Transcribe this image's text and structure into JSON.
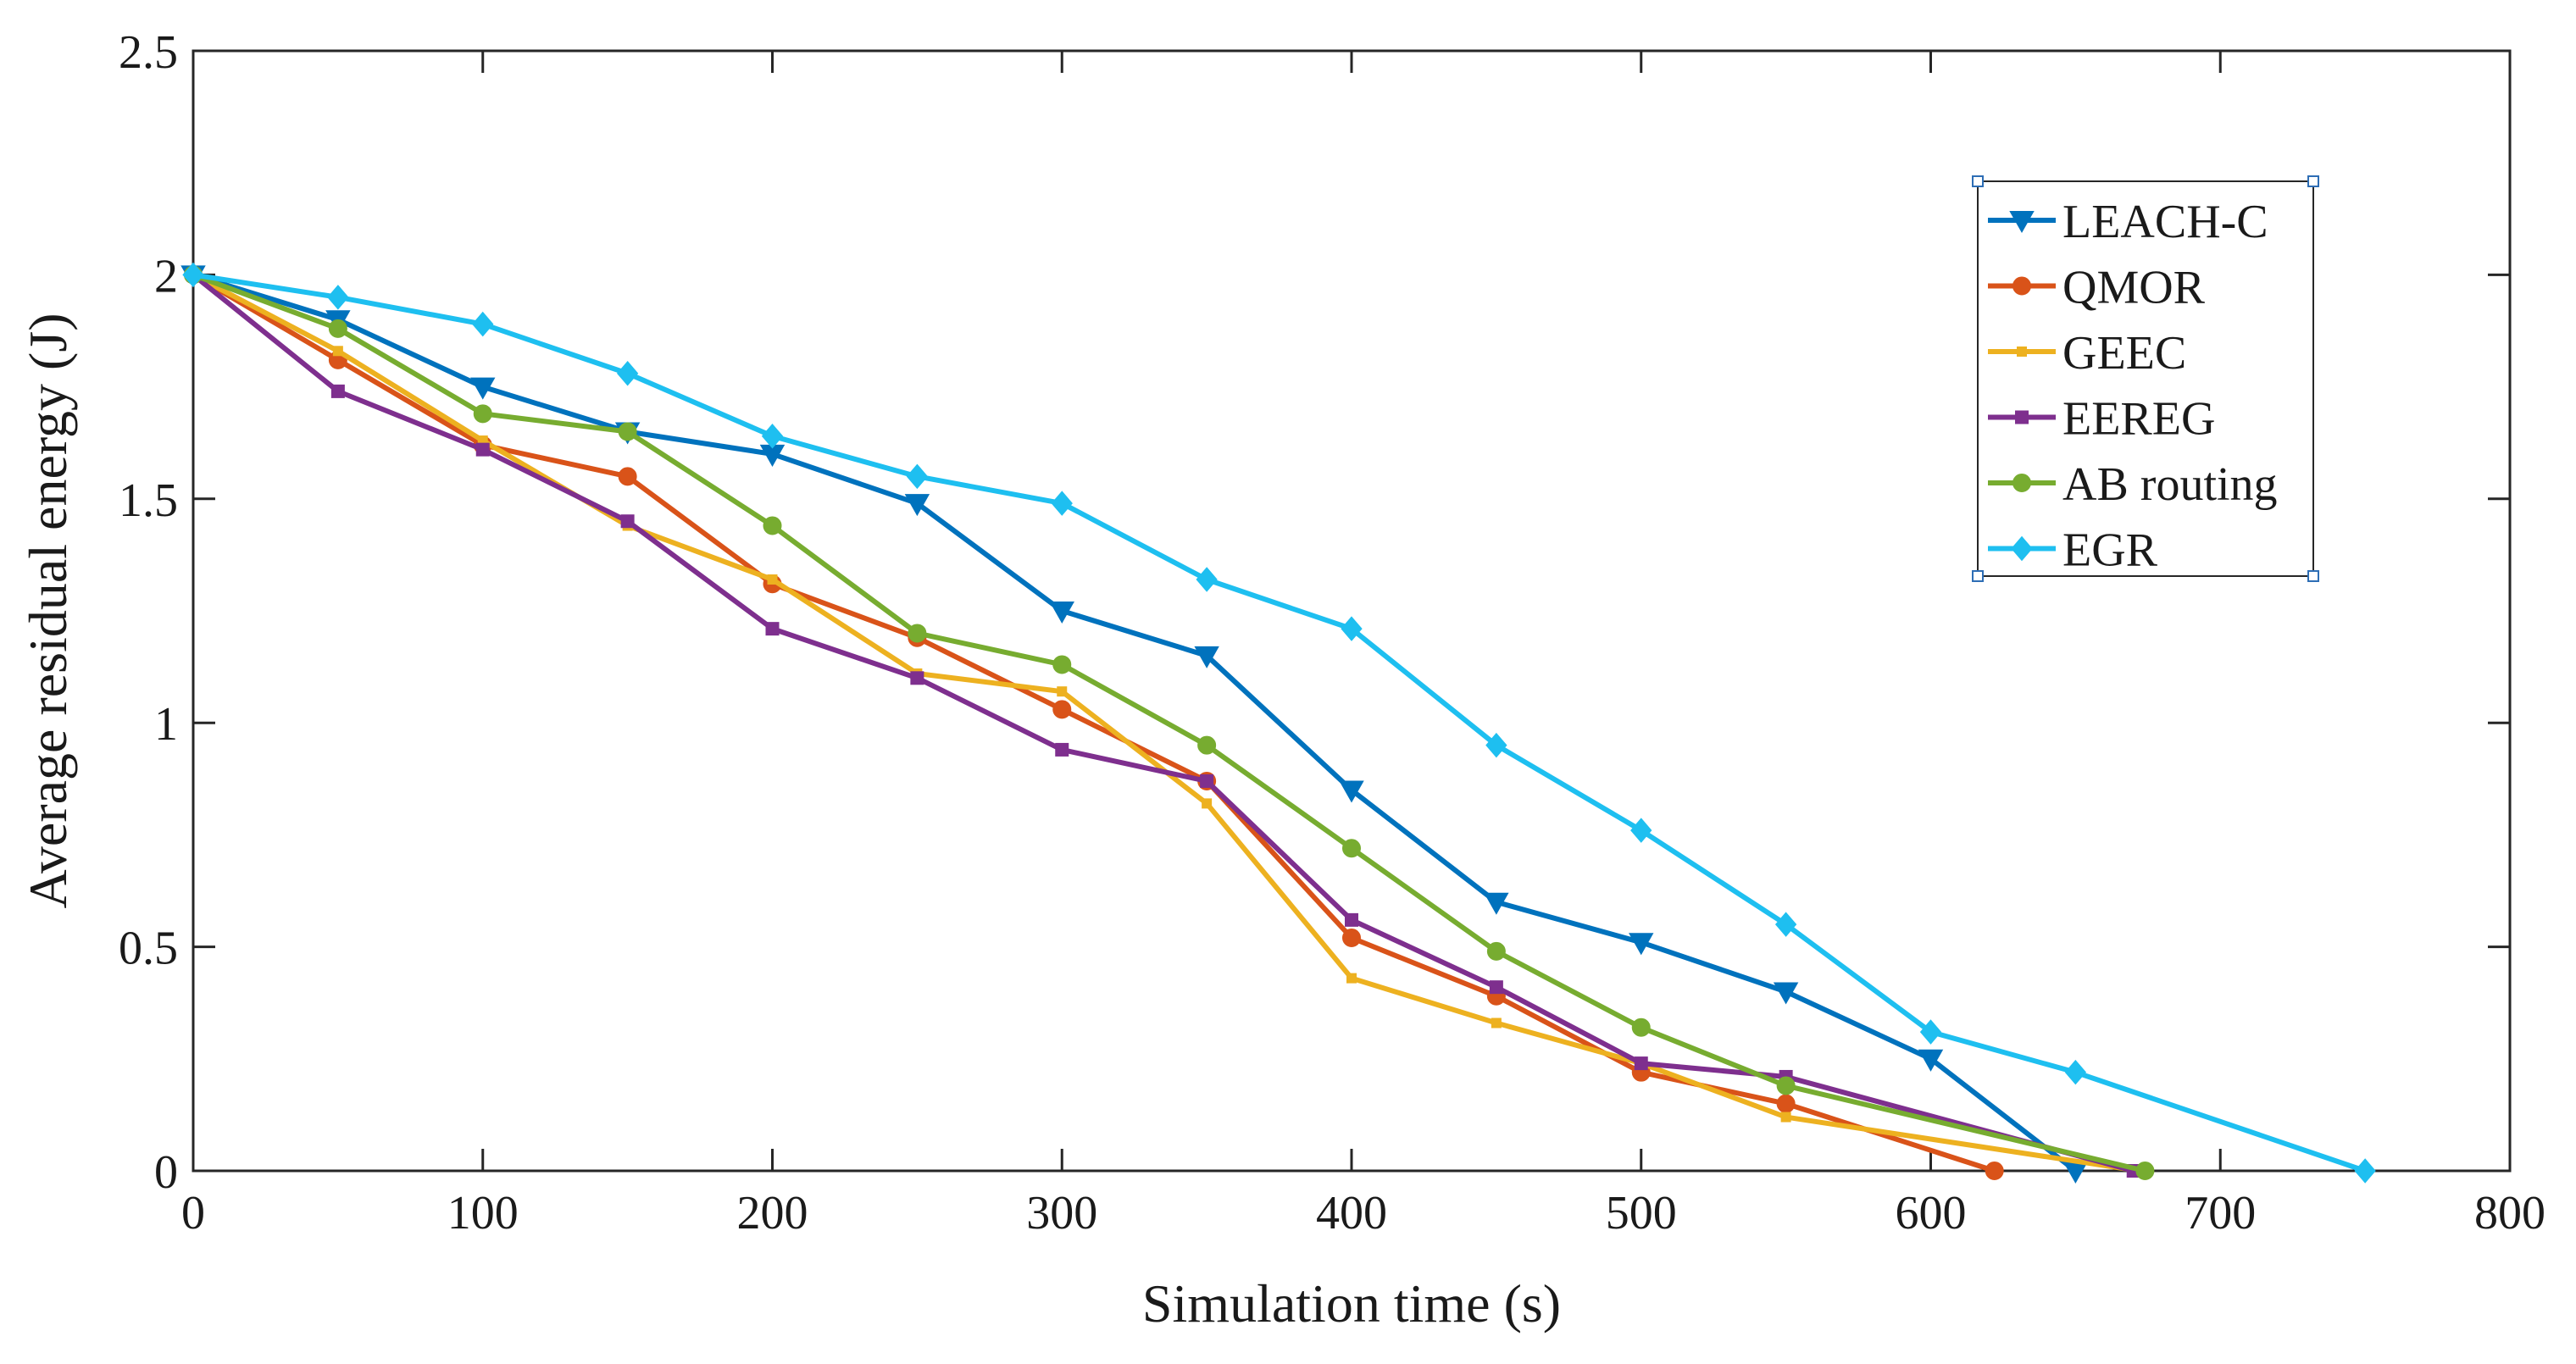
{
  "chart_data": {
    "type": "line",
    "xlabel": "Simulation time (s)",
    "ylabel": "Average residual energy (J)",
    "xlim": [
      0,
      800
    ],
    "ylim": [
      0,
      2.5
    ],
    "xticks": [
      0,
      100,
      200,
      300,
      400,
      500,
      600,
      700,
      800
    ],
    "yticks": [
      0,
      0.5,
      1,
      1.5,
      2,
      2.5
    ],
    "xtick_labels": [
      "0",
      "100",
      "200",
      "300",
      "400",
      "500",
      "600",
      "700",
      "800"
    ],
    "ytick_labels": [
      "0",
      "0.5",
      "1",
      "1.5",
      "2",
      "2.5"
    ],
    "grid": false,
    "legend_position": "top-right",
    "series": [
      {
        "name": "LEACH-C",
        "color": "#0072BD",
        "marker": "triangle-down",
        "x": [
          0,
          50,
          100,
          150,
          200,
          250,
          300,
          350,
          400,
          450,
          500,
          550,
          600,
          650
        ],
        "y": [
          2.0,
          1.9,
          1.75,
          1.65,
          1.6,
          1.49,
          1.25,
          1.15,
          0.85,
          0.6,
          0.51,
          0.4,
          0.25,
          0.0
        ]
      },
      {
        "name": "QMOR",
        "color": "#D95319",
        "marker": "circle",
        "x": [
          0,
          50,
          100,
          150,
          200,
          250,
          300,
          350,
          400,
          450,
          500,
          550,
          622
        ],
        "y": [
          2.0,
          1.81,
          1.62,
          1.55,
          1.31,
          1.19,
          1.03,
          0.87,
          0.52,
          0.39,
          0.22,
          0.15,
          0.0
        ]
      },
      {
        "name": "GEEC",
        "color": "#EDB120",
        "marker": "square-small",
        "x": [
          0,
          50,
          100,
          150,
          200,
          250,
          300,
          350,
          400,
          450,
          500,
          550,
          672
        ],
        "y": [
          2.0,
          1.83,
          1.63,
          1.44,
          1.32,
          1.11,
          1.07,
          0.82,
          0.43,
          0.33,
          0.24,
          0.12,
          0.0
        ]
      },
      {
        "name": "EEREG",
        "color": "#7E2F8E",
        "marker": "square",
        "x": [
          0,
          50,
          100,
          150,
          200,
          250,
          300,
          350,
          400,
          450,
          500,
          550,
          670
        ],
        "y": [
          2.0,
          1.74,
          1.61,
          1.45,
          1.21,
          1.1,
          0.94,
          0.87,
          0.56,
          0.41,
          0.24,
          0.21,
          0.0
        ]
      },
      {
        "name": "AB routing",
        "color": "#77AC30",
        "marker": "circle",
        "x": [
          0,
          50,
          100,
          150,
          200,
          250,
          300,
          350,
          400,
          450,
          500,
          550,
          674
        ],
        "y": [
          2.0,
          1.88,
          1.69,
          1.65,
          1.44,
          1.2,
          1.13,
          0.95,
          0.72,
          0.49,
          0.32,
          0.19,
          0.0
        ]
      },
      {
        "name": "EGR",
        "color": "#1EBFF0",
        "marker": "diamond",
        "x": [
          0,
          50,
          100,
          150,
          200,
          250,
          300,
          350,
          400,
          450,
          500,
          550,
          600,
          650,
          750
        ],
        "y": [
          2.0,
          1.95,
          1.89,
          1.78,
          1.64,
          1.55,
          1.49,
          1.32,
          1.21,
          0.95,
          0.76,
          0.55,
          0.31,
          0.22,
          0.0
        ]
      }
    ]
  }
}
